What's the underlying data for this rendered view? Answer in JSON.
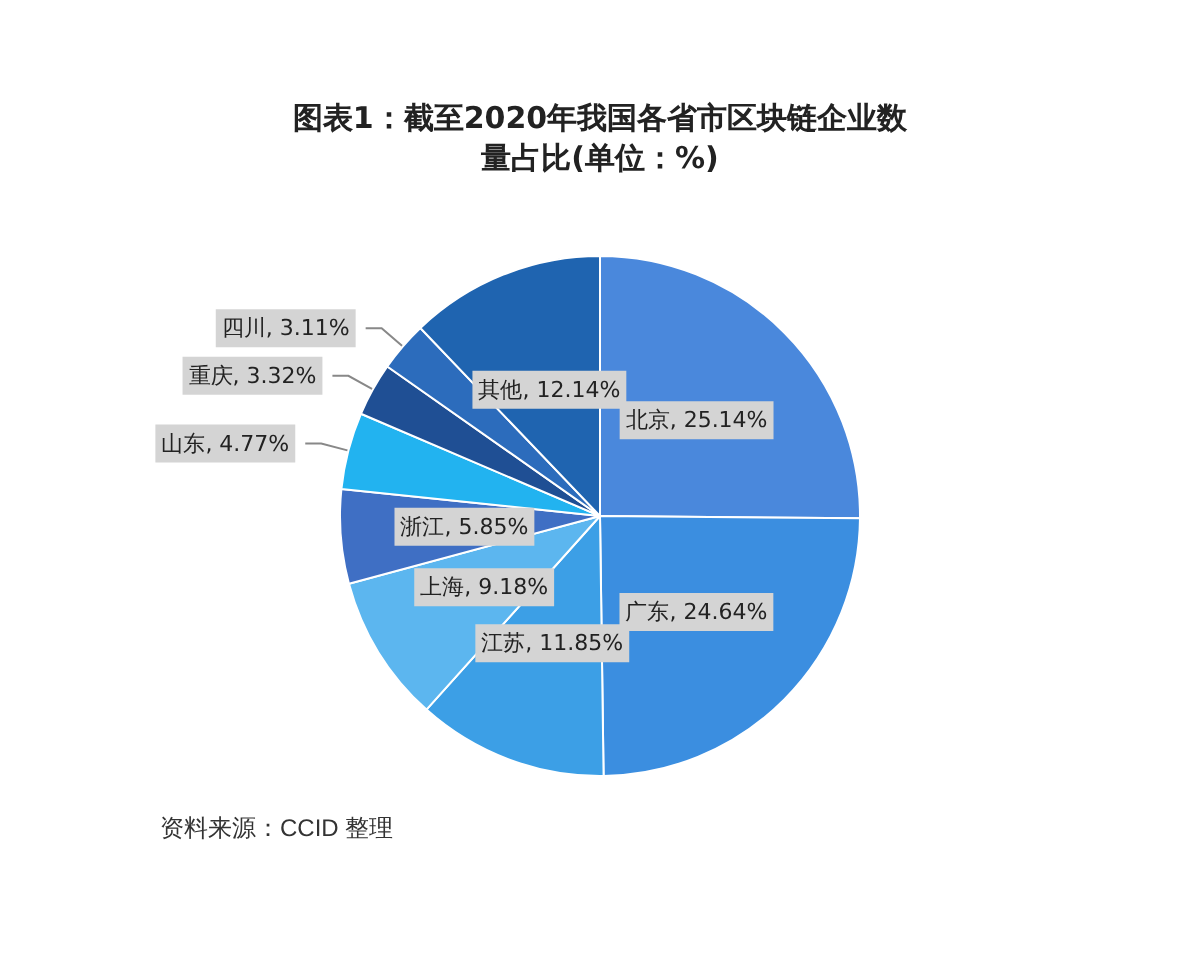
{
  "chart_data": {
    "type": "pie",
    "title": "图表1：截至2020年我国各省市区块链企业数量占比(单位：%)",
    "categories": [
      "北京",
      "广东",
      "江苏",
      "上海",
      "浙江",
      "山东",
      "重庆",
      "四川",
      "其他"
    ],
    "values": [
      25.14,
      24.64,
      11.85,
      9.18,
      5.85,
      4.77,
      3.32,
      3.11,
      12.14
    ],
    "value_labels": [
      "25.14%",
      "24.64%",
      "11.85%",
      "9.18%",
      "5.85%",
      "4.77%",
      "3.32%",
      "3.11%",
      "12.14%"
    ],
    "colors": [
      "#4a88dc",
      "#3b8ee0",
      "#3c9fe6",
      "#5cb6ef",
      "#3f6fc4",
      "#22b3f0",
      "#1f4f94",
      "#2c6cbc",
      "#1f64b0"
    ],
    "annotations": [
      "资料来源：CCID 整理"
    ],
    "legend": false
  }
}
